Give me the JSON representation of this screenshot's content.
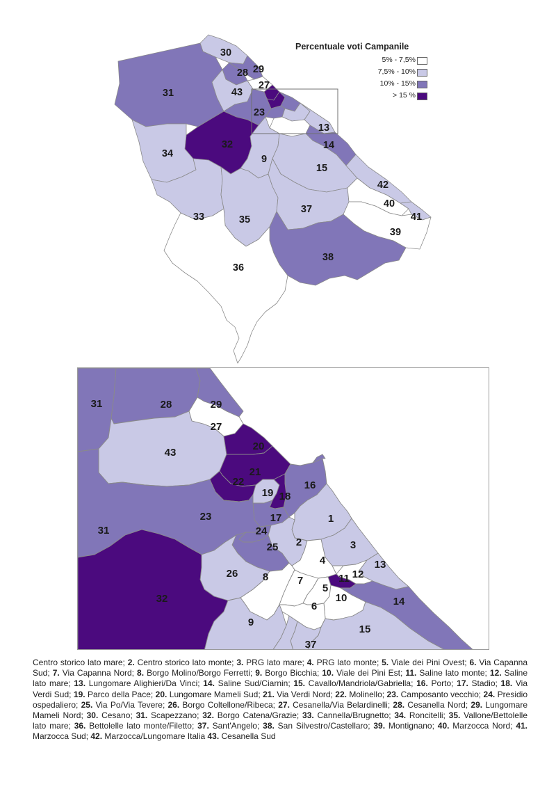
{
  "legend": {
    "title": "Percentuale voti Campanile",
    "classes": [
      {
        "label": "5% - 7,5%",
        "color": "#ffffff"
      },
      {
        "label": "7,5% - 10%",
        "color": "#c9c9e6"
      },
      {
        "label": "10% - 15%",
        "color": "#8176b8"
      },
      {
        "label": "> 15 %",
        "color": "#4b0a7e"
      }
    ]
  },
  "district_class": {
    "1": 1,
    "2": 1,
    "3": 1,
    "4": 0,
    "5": 0,
    "6": 0,
    "7": 0,
    "8": 0,
    "9": 1,
    "10": 0,
    "11": 3,
    "12": 0,
    "13": 1,
    "14": 2,
    "15": 1,
    "16": 2,
    "17": 2,
    "18": 3,
    "19": 1,
    "20": 3,
    "21": 3,
    "22": 3,
    "23": 2,
    "24": 2,
    "25": 2,
    "26": 1,
    "27": 0,
    "28": 2,
    "29": 2,
    "30": 1,
    "31": 2,
    "32": 3,
    "33": 1,
    "34": 1,
    "35": 1,
    "36": 0,
    "37": 1,
    "38": 2,
    "39": 0,
    "40": 0,
    "41": 1,
    "42": 1,
    "43": 1
  },
  "map_labels": [
    "30",
    "29",
    "28",
    "27",
    "31",
    "43",
    "23",
    "13",
    "32",
    "14",
    "34",
    "9",
    "15",
    "42",
    "40",
    "41",
    "33",
    "35",
    "37",
    "39",
    "36",
    "38"
  ],
  "inset_labels": [
    "31",
    "28",
    "29",
    "27",
    "43",
    "20",
    "21",
    "22",
    "16",
    "19",
    "18",
    "17",
    "23",
    "1",
    "24",
    "25",
    "2",
    "3",
    "31",
    "4",
    "13",
    "26",
    "8",
    "7",
    "5",
    "11",
    "12",
    "10",
    "32",
    "6",
    "14",
    "9",
    "15",
    "37"
  ],
  "caption": [
    {
      "num": "",
      "name": "Centro storico lato mare; "
    },
    {
      "num": "2.",
      "name": " Centro storico lato monte; "
    },
    {
      "num": "3.",
      "name": " PRG lato mare; "
    },
    {
      "num": "4.",
      "name": " PRG lato monte; "
    },
    {
      "num": "5.",
      "name": " Viale dei Pini Ovest; "
    },
    {
      "num": "6.",
      "name": " Via Capanna Sud; "
    },
    {
      "num": "7.",
      "name": " Via Capanna Nord; "
    },
    {
      "num": "8.",
      "name": " Borgo Molino/Borgo Ferretti; "
    },
    {
      "num": "9.",
      "name": " Borgo Bicchia; "
    },
    {
      "num": "10.",
      "name": " Viale dei Pini Est; "
    },
    {
      "num": "11.",
      "name": " Saline lato monte; "
    },
    {
      "num": "12.",
      "name": " Saline lato mare; "
    },
    {
      "num": "13.",
      "name": " Lungomare Alighieri/Da Vinci; "
    },
    {
      "num": "14.",
      "name": " Saline Sud/Ciarnin; "
    },
    {
      "num": "15.",
      "name": " Cavallo/Mandriola/Gabriella; "
    },
    {
      "num": "16.",
      "name": " Porto; "
    },
    {
      "num": "17.",
      "name": " Stadio; "
    },
    {
      "num": "18.",
      "name": " Via Verdi Sud; "
    },
    {
      "num": "19.",
      "name": " Parco della Pace; "
    },
    {
      "num": "20.",
      "name": " Lungomare Mameli Sud; "
    },
    {
      "num": "21.",
      "name": " Via Verdi Nord; "
    },
    {
      "num": "22.",
      "name": " Molinello; "
    },
    {
      "num": "23.",
      "name": " Camposanto vecchio; "
    },
    {
      "num": "24.",
      "name": " Presidio ospedaliero; "
    },
    {
      "num": "25.",
      "name": " Via Po/Via Tevere; "
    },
    {
      "num": "26.",
      "name": " Borgo Coltellone/Ribeca; "
    },
    {
      "num": "27.",
      "name": " Cesanella/Via Belardinelli; "
    },
    {
      "num": "28.",
      "name": " Cesanella Nord; "
    },
    {
      "num": "29.",
      "name": " Lungomare Mameli Nord; "
    },
    {
      "num": "30.",
      "name": " Cesano; "
    },
    {
      "num": "31.",
      "name": " Scapezzano; "
    },
    {
      "num": "32.",
      "name": " Borgo Catena/Grazie; "
    },
    {
      "num": "33.",
      "name": " Cannella/Brugnetto; "
    },
    {
      "num": "34.",
      "name": " Roncitelli; "
    },
    {
      "num": "35.",
      "name": " Vallone/Bettolelle lato mare; "
    },
    {
      "num": "36.",
      "name": " Bettolelle lato monte/Filetto; "
    },
    {
      "num": "37.",
      "name": " Sant'Angelo; "
    },
    {
      "num": "38.",
      "name": " San Silvestro/Castellaro; "
    },
    {
      "num": "39.",
      "name": " Montignano; "
    },
    {
      "num": "40.",
      "name": " Marzocca Nord; "
    },
    {
      "num": "41.",
      "name": " Marzocca Sud; "
    },
    {
      "num": "42.",
      "name": " Marzocca/Lungomare Italia "
    },
    {
      "num": "43.",
      "name": "  Cesanella Sud"
    }
  ]
}
